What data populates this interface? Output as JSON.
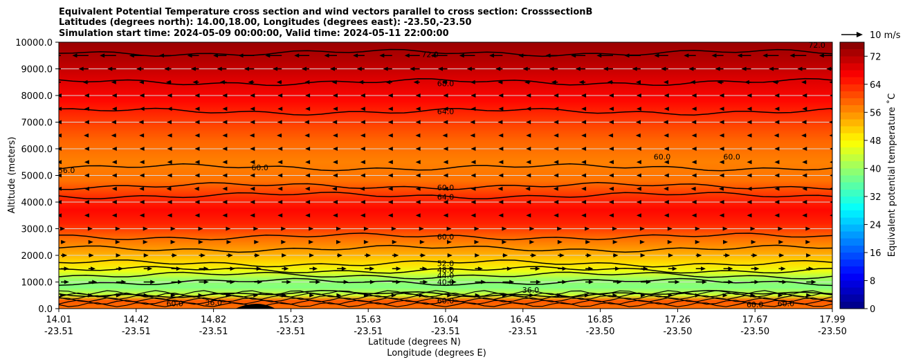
{
  "chart_data": {
    "type": "contour",
    "title_lines": [
      "Equivalent Potential Temperature cross section and wind vectors parallel to cross section: CrosssectionB",
      "Latitudes (degrees north): 14.00,18.00, Longitudes (degrees east): -23.50,-23.50",
      "Simulation start time: 2024-05-09 00:00:00, Valid time: 2024-05-11 22:00:00"
    ],
    "xlabel": "Latitude (degrees N)",
    "xlabel2": "Longitude (degrees E)",
    "ylabel": "Altitude (meters)",
    "ylim": [
      0,
      10000
    ],
    "y_ticks": [
      "0.0",
      "1000.0",
      "2000.0",
      "3000.0",
      "4000.0",
      "5000.0",
      "6000.0",
      "7000.0",
      "8000.0",
      "9000.0",
      "10000.0"
    ],
    "x_ticks": [
      {
        "lat": "14.01",
        "lon": "-23.51"
      },
      {
        "lat": "14.42",
        "lon": "-23.51"
      },
      {
        "lat": "14.82",
        "lon": "-23.51"
      },
      {
        "lat": "15.23",
        "lon": "-23.51"
      },
      {
        "lat": "15.63",
        "lon": "-23.51"
      },
      {
        "lat": "16.04",
        "lon": "-23.51"
      },
      {
        "lat": "16.45",
        "lon": "-23.51"
      },
      {
        "lat": "16.85",
        "lon": "-23.50"
      },
      {
        "lat": "17.26",
        "lon": "-23.50"
      },
      {
        "lat": "17.67",
        "lon": "-23.50"
      },
      {
        "lat": "17.99",
        "lon": "-23.50"
      }
    ],
    "colorbar": {
      "label": "Equivalent potential temperature ˚C",
      "range": [
        0,
        76
      ],
      "ticks": [
        "0",
        "8",
        "16",
        "24",
        "32",
        "40",
        "48",
        "56",
        "64",
        "72"
      ]
    },
    "quiver_key": "10 m/s",
    "profile": [
      {
        "alt": 0,
        "theta": 58
      },
      {
        "alt": 300,
        "theta": 60
      },
      {
        "alt": 500,
        "theta": 44
      },
      {
        "alt": 800,
        "theta": 38
      },
      {
        "alt": 1100,
        "theta": 40
      },
      {
        "alt": 1400,
        "theta": 46
      },
      {
        "alt": 1700,
        "theta": 50
      },
      {
        "alt": 2100,
        "theta": 54
      },
      {
        "alt": 2600,
        "theta": 58
      },
      {
        "alt": 3200,
        "theta": 64
      },
      {
        "alt": 3700,
        "theta": 66
      },
      {
        "alt": 4200,
        "theta": 63
      },
      {
        "alt": 4800,
        "theta": 58
      },
      {
        "alt": 5500,
        "theta": 57
      },
      {
        "alt": 6300,
        "theta": 59
      },
      {
        "alt": 7000,
        "theta": 62
      },
      {
        "alt": 7800,
        "theta": 66
      },
      {
        "alt": 8600,
        "theta": 69
      },
      {
        "alt": 9300,
        "theta": 72
      },
      {
        "alt": 10000,
        "theta": 74
      }
    ],
    "contour_lines": [
      {
        "label": "36.0",
        "alt": 550
      },
      {
        "label": "40.0",
        "alt": 1000
      },
      {
        "label": "44.0",
        "alt": 1250
      },
      {
        "label": "48.0",
        "alt": 1450
      },
      {
        "label": "52.0",
        "alt": 1700
      },
      {
        "label": "56.0",
        "alt": 2250
      },
      {
        "label": "60.0",
        "alt": 2700
      },
      {
        "label": "64.0",
        "alt": 4250
      },
      {
        "label": "60.0",
        "alt": 4600
      },
      {
        "label": "60.0",
        "alt": 5300
      },
      {
        "label": "64.0",
        "alt": 7400
      },
      {
        "label": "68.0",
        "alt": 8500
      },
      {
        "label": "72.0",
        "alt": 9600
      }
    ],
    "contour_labels": [
      {
        "text": "68.0",
        "xi": 5.0,
        "alt": 8450
      },
      {
        "text": "64.0",
        "xi": 5.0,
        "alt": 7400
      },
      {
        "text": "60.0",
        "xi": 5.0,
        "alt": 4550
      },
      {
        "text": "64.0",
        "xi": 5.0,
        "alt": 4200
      },
      {
        "text": "60.0",
        "xi": 5.0,
        "alt": 2700
      },
      {
        "text": "52.0",
        "xi": 5.0,
        "alt": 1700
      },
      {
        "text": "48.0",
        "xi": 5.0,
        "alt": 1450
      },
      {
        "text": "44.0",
        "xi": 5.0,
        "alt": 1250
      },
      {
        "text": "40.0",
        "xi": 5.0,
        "alt": 1000
      },
      {
        "text": "36.0",
        "xi": 6.1,
        "alt": 700
      },
      {
        "text": "60.0",
        "xi": 5.0,
        "alt": 300
      },
      {
        "text": "60.0",
        "xi": 1.5,
        "alt": 200
      },
      {
        "text": "36.0",
        "xi": 2.0,
        "alt": 230
      },
      {
        "text": "56.0",
        "xi": 0.1,
        "alt": 5200
      },
      {
        "text": "60.0",
        "xi": 2.6,
        "alt": 5300
      },
      {
        "text": "60.0",
        "xi": 7.8,
        "alt": 5700
      },
      {
        "text": "60.0",
        "xi": 8.7,
        "alt": 5700
      },
      {
        "text": "72.0",
        "xi": 4.8,
        "alt": 9550
      },
      {
        "text": "72.0",
        "xi": 9.8,
        "alt": 9900
      },
      {
        "text": "60.0",
        "xi": 9.0,
        "alt": 150
      },
      {
        "text": "60.0",
        "xi": 9.4,
        "alt": 200
      }
    ],
    "wind_rows": [
      {
        "alt": 9500,
        "u": -10
      },
      {
        "alt": 9000,
        "u": -6
      },
      {
        "alt": 8500,
        "u": -4
      },
      {
        "alt": 8000,
        "u": -2
      },
      {
        "alt": 7500,
        "u": -2
      },
      {
        "alt": 7000,
        "u": -3
      },
      {
        "alt": 6500,
        "u": -3
      },
      {
        "alt": 6000,
        "u": -2
      },
      {
        "alt": 5500,
        "u": -2
      },
      {
        "alt": 5000,
        "u": -2
      },
      {
        "alt": 4500,
        "u": -3
      },
      {
        "alt": 4000,
        "u": -2
      },
      {
        "alt": 3500,
        "u": -2
      },
      {
        "alt": 3000,
        "u": 2
      },
      {
        "alt": 2500,
        "u": 3
      },
      {
        "alt": 2000,
        "u": 4
      },
      {
        "alt": 1500,
        "u": 6
      },
      {
        "alt": 1000,
        "u": 7
      },
      {
        "alt": 500,
        "u": 3
      }
    ]
  }
}
